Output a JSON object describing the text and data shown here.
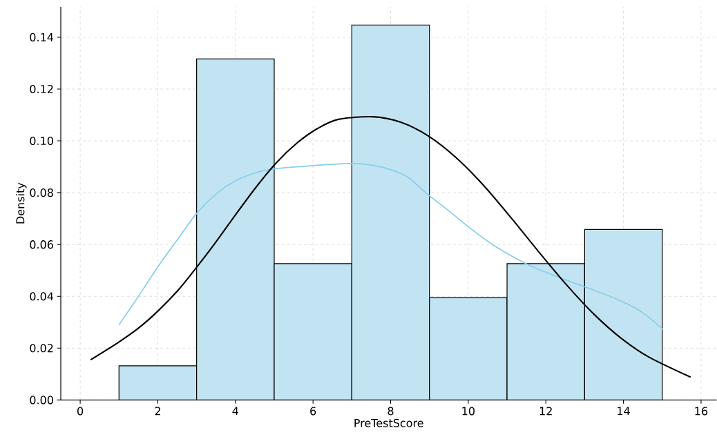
{
  "chart_data": {
    "type": "histogram",
    "xlabel": "PreTestScore",
    "ylabel": "Density",
    "xlim": [
      -0.5,
      16.4
    ],
    "ylim": [
      0,
      0.1517
    ],
    "xticks": [
      0,
      2,
      4,
      6,
      8,
      10,
      12,
      14,
      16
    ],
    "yticks": [
      {
        "value": 0,
        "label": "0.00"
      },
      {
        "value": 0.02,
        "label": "0.02"
      },
      {
        "value": 0.04,
        "label": "0.04"
      },
      {
        "value": 0.06,
        "label": "0.06"
      },
      {
        "value": 0.08,
        "label": "0.08"
      },
      {
        "value": 0.1,
        "label": "0.10"
      },
      {
        "value": 0.12,
        "label": "0.12"
      },
      {
        "value": 0.14,
        "label": "0.14"
      }
    ],
    "grid": true,
    "series": [
      {
        "color": "#c2e4f2",
        "bins": [
          1,
          3,
          5,
          7,
          9,
          11,
          13,
          15
        ],
        "values": [
          0.0132,
          0.1316,
          0.0526,
          0.1447,
          0.0395,
          0.0526,
          0.0658
        ]
      },
      {
        "type": "line",
        "color": "#87ceeb",
        "x": [
          1.0,
          1.5,
          2.03,
          2.56,
          3.0,
          3.54,
          3.99,
          4.52,
          5.05,
          5.94,
          6.83,
          7.37,
          7.9,
          8.43,
          8.97,
          9.5,
          10.04,
          10.57,
          11.1,
          11.64,
          12.17,
          12.7,
          13.24,
          13.95,
          14.48,
          15.02
        ],
        "values": [
          0.029,
          0.04,
          0.052,
          0.063,
          0.072,
          0.08,
          0.0845,
          0.0877,
          0.0893,
          0.0904,
          0.0912,
          0.0909,
          0.0893,
          0.0861,
          0.0792,
          0.073,
          0.0664,
          0.0605,
          0.0557,
          0.0515,
          0.0483,
          0.0453,
          0.0424,
          0.0381,
          0.0339,
          0.0272
        ]
      },
      {
        "type": "line",
        "color": "#000000",
        "x": [
          0.27,
          0.96,
          1.5,
          2.03,
          2.56,
          3.0,
          3.45,
          3.99,
          4.52,
          5.05,
          5.59,
          6.12,
          6.65,
          7.54,
          8.26,
          8.97,
          9.68,
          10.39,
          11.1,
          11.81,
          12.53,
          13.24,
          13.95,
          14.66,
          15.73
        ],
        "values": [
          0.0155,
          0.022,
          0.0277,
          0.0347,
          0.043,
          0.0512,
          0.06,
          0.0712,
          0.0819,
          0.0915,
          0.0992,
          0.1048,
          0.1083,
          0.1093,
          0.1072,
          0.1019,
          0.0936,
          0.0829,
          0.0704,
          0.0573,
          0.0445,
          0.0331,
          0.0237,
          0.0165,
          0.0088
        ]
      }
    ]
  }
}
